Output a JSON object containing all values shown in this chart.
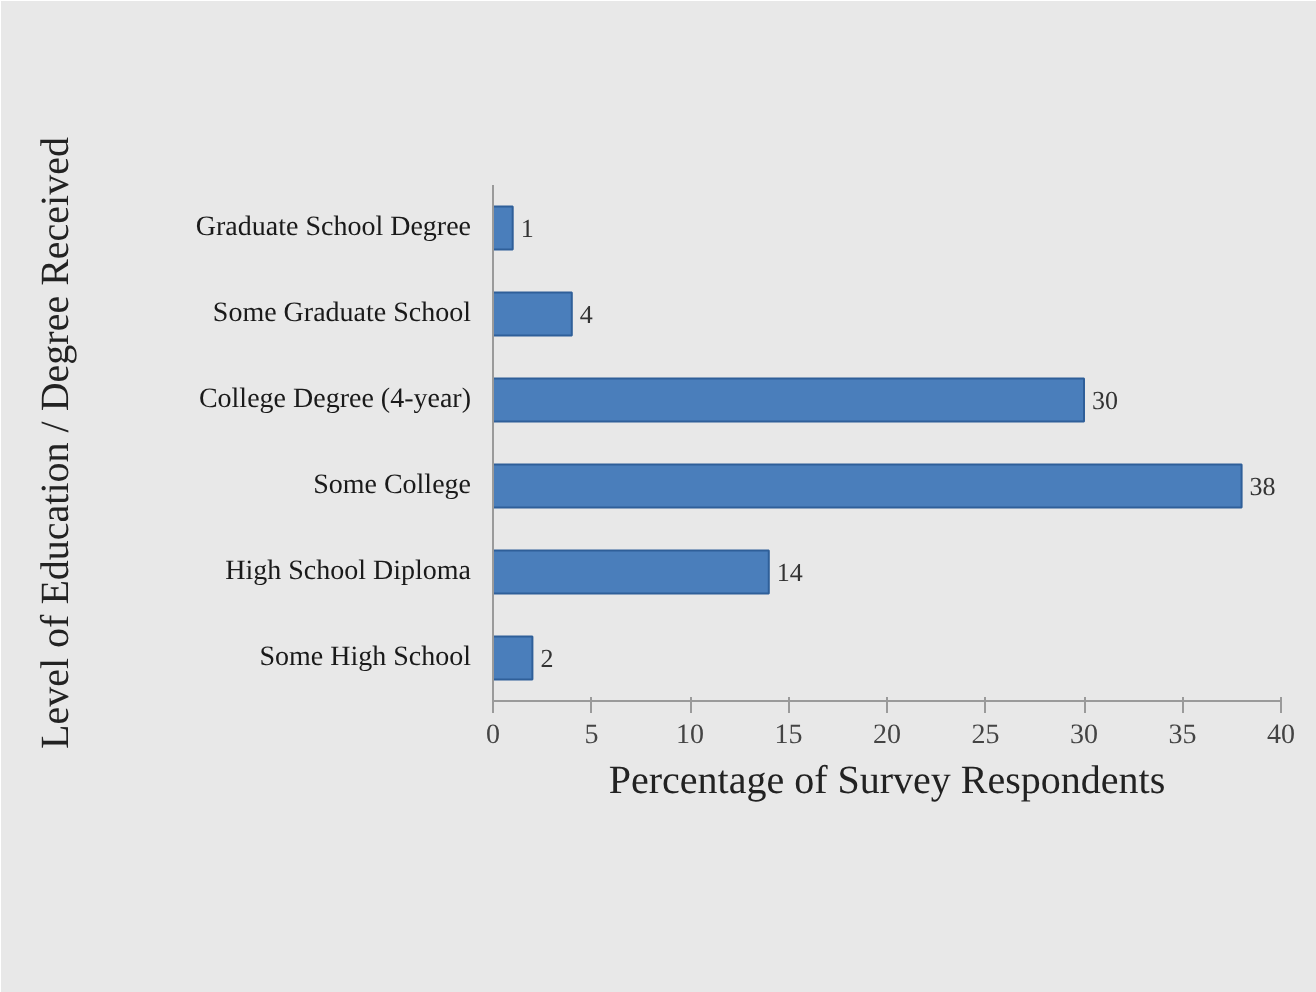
{
  "chart_data": {
    "type": "bar",
    "orientation": "horizontal",
    "xlabel": "Percentage of Survey Respondents",
    "ylabel": "Level of Education / Degree Received",
    "categories": [
      "Graduate School Degree",
      "Some Graduate School",
      "College Degree (4-year)",
      "Some College",
      "High School Diploma",
      "Some High School"
    ],
    "values": [
      1,
      4,
      30,
      38,
      14,
      2
    ],
    "color": "#4a7ebb",
    "xlim": [
      0,
      40
    ],
    "xticks": [
      0,
      5,
      10,
      15,
      20,
      25,
      30,
      35,
      40
    ],
    "data_labels": true
  }
}
